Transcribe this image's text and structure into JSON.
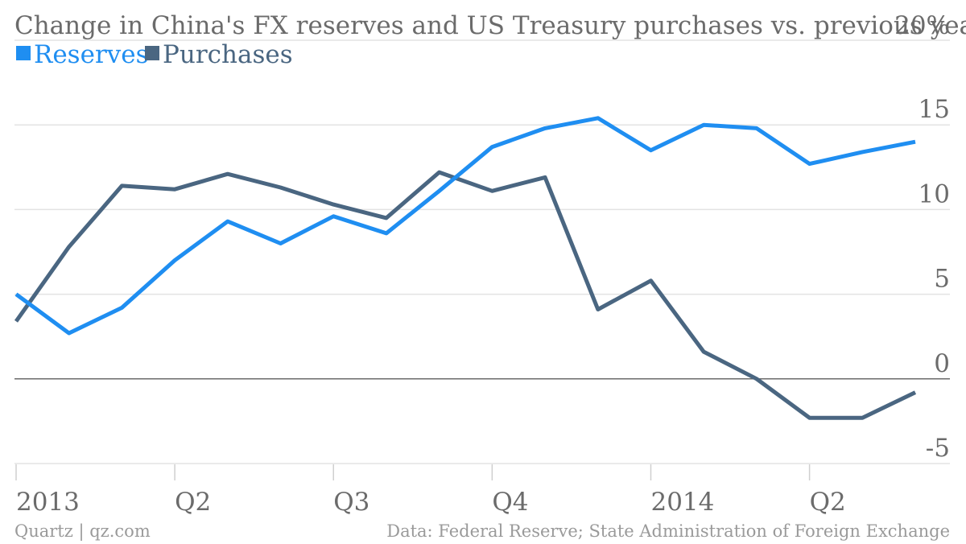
{
  "chart_data": {
    "type": "line",
    "title": "Change in China's FX reserves and US Treasury purchases vs. previous year",
    "y_top_label": "20%",
    "ylim": [
      -5,
      20
    ],
    "y_ticks": [
      {
        "value": 15,
        "label": "15"
      },
      {
        "value": 10,
        "label": "10"
      },
      {
        "value": 5,
        "label": "5"
      },
      {
        "value": 0,
        "label": "0"
      },
      {
        "value": -5,
        "label": "-5"
      }
    ],
    "x_ticks": [
      {
        "index": 0,
        "label": "2013"
      },
      {
        "index": 3,
        "label": "Q2"
      },
      {
        "index": 6,
        "label": "Q3"
      },
      {
        "index": 9,
        "label": "Q4"
      },
      {
        "index": 12,
        "label": "2014"
      },
      {
        "index": 15,
        "label": "Q2"
      }
    ],
    "x_count": 18,
    "grid": true,
    "legend_position": "top-left",
    "series": [
      {
        "name": "Reserves",
        "color": "#1f8ef1",
        "values": [
          5.0,
          2.7,
          4.2,
          7.0,
          9.3,
          8.0,
          9.6,
          8.6,
          11.1,
          13.7,
          14.8,
          15.4,
          13.5,
          15.0,
          14.8,
          12.7,
          13.4,
          14.0
        ]
      },
      {
        "name": "Purchases",
        "color": "#4a6681",
        "values": [
          3.4,
          7.8,
          11.4,
          11.2,
          12.1,
          11.3,
          10.3,
          9.5,
          12.2,
          11.1,
          11.9,
          4.1,
          5.8,
          1.6,
          0.0,
          -2.3,
          -2.3,
          -0.8
        ]
      }
    ]
  },
  "footer": {
    "left": "Quartz | qz.com",
    "right": "Data: Federal Reserve; State Administration of Foreign Exchange"
  }
}
